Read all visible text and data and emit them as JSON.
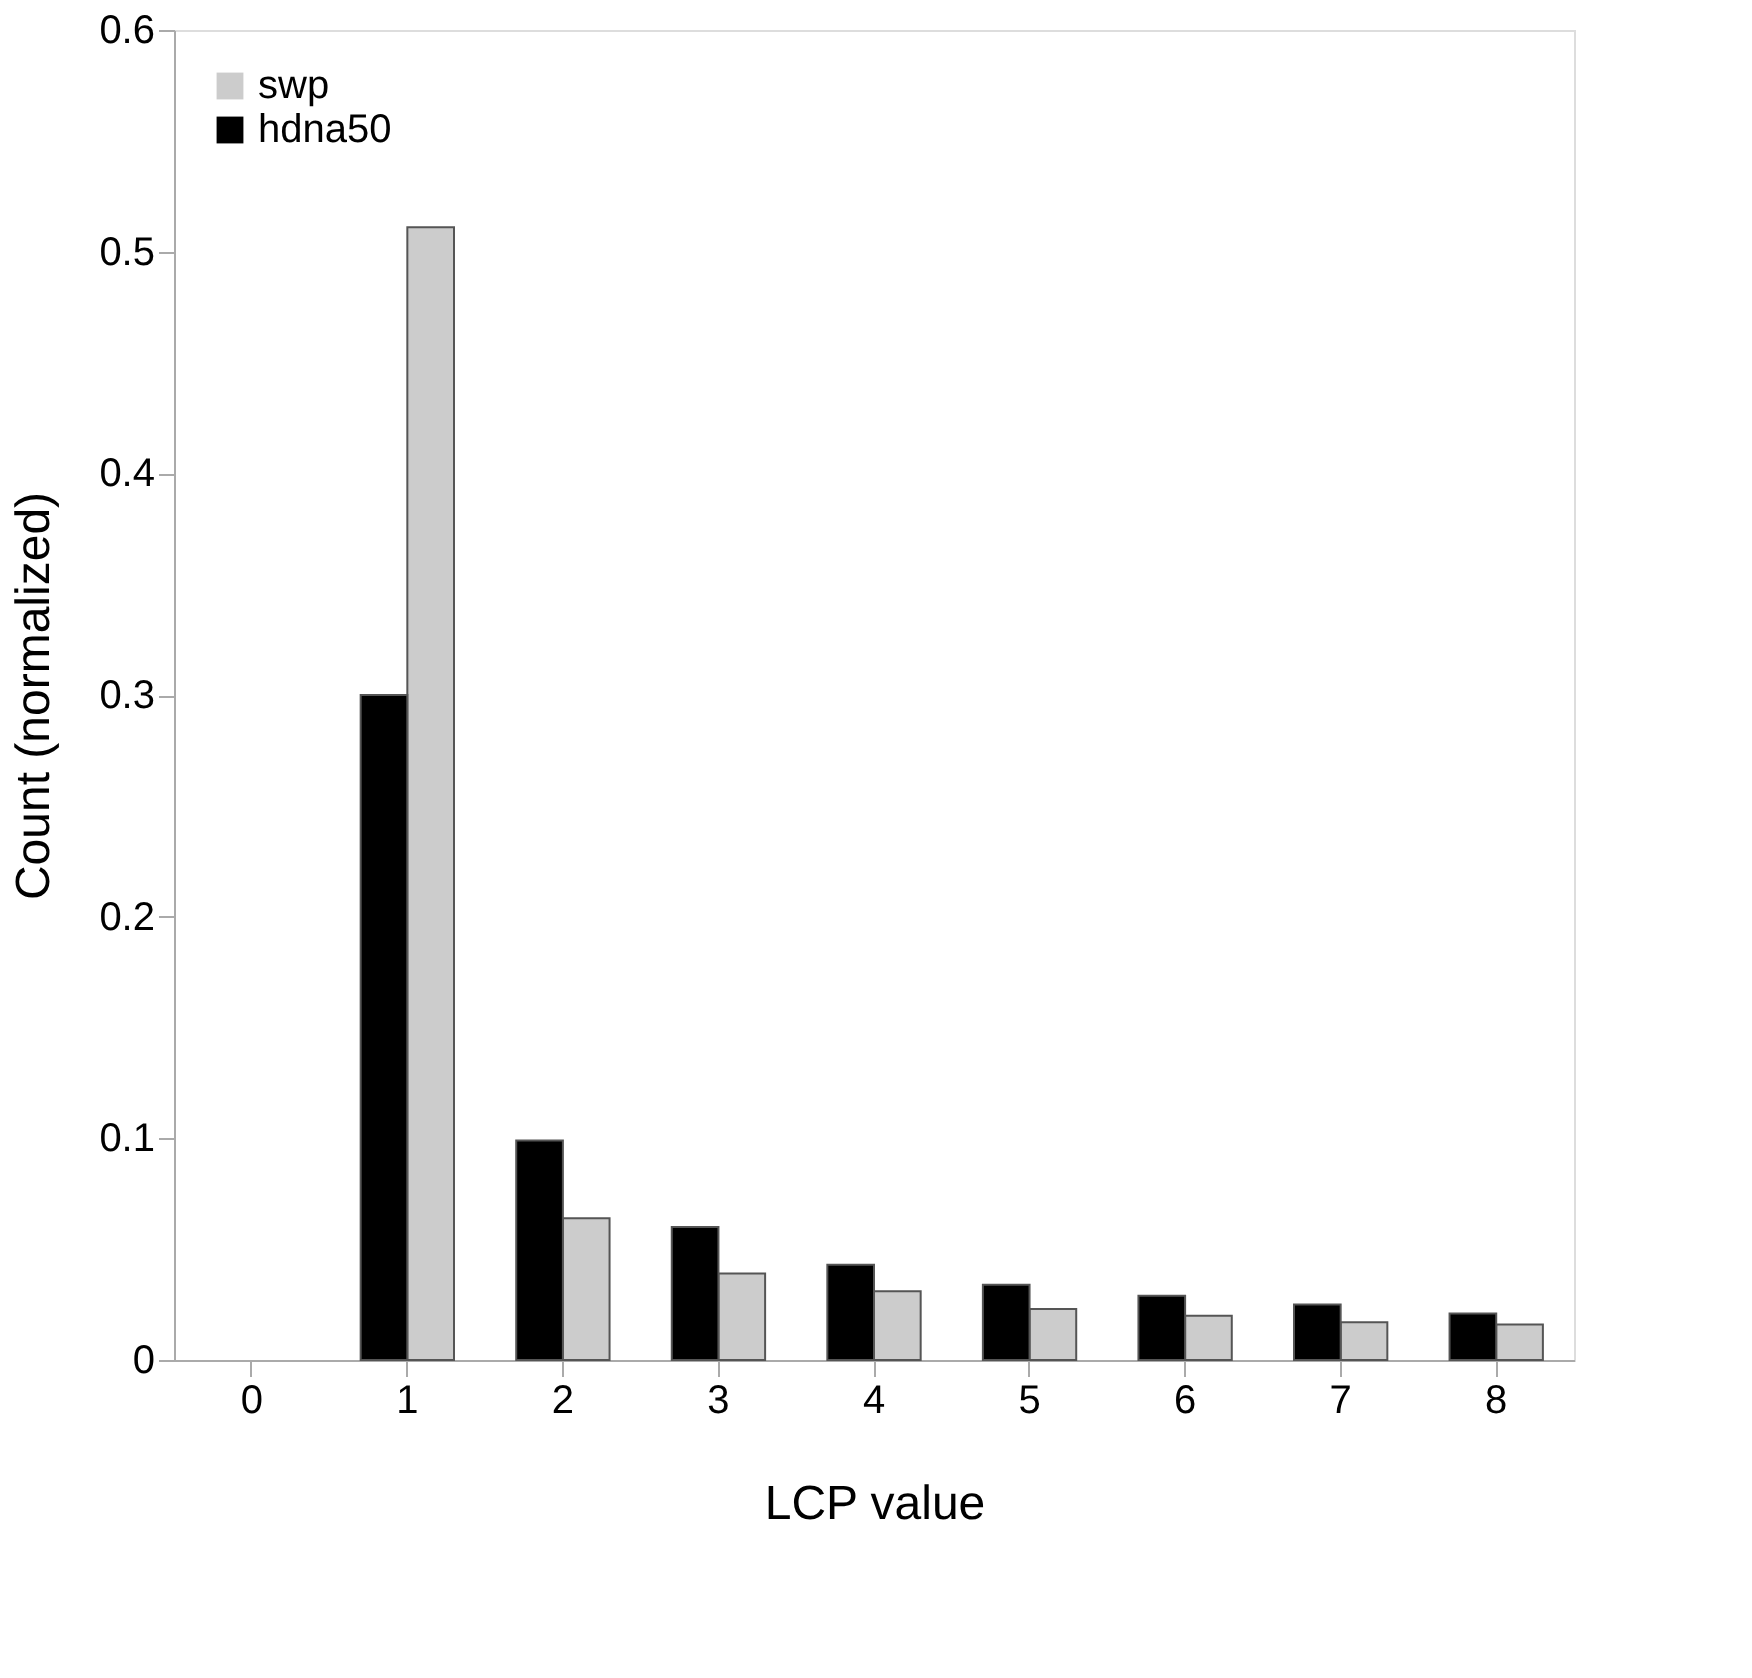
{
  "chart_data": {
    "type": "bar",
    "xlabel": "LCP value",
    "ylabel": "Count (normalized)",
    "categories": [
      "0",
      "1",
      "2",
      "3",
      "4",
      "5",
      "6",
      "7",
      "8"
    ],
    "series": [
      {
        "name": "swp",
        "color": "#cccccc",
        "values": [
          null,
          0.511,
          0.064,
          0.039,
          0.031,
          0.023,
          0.02,
          0.017,
          0.016
        ]
      },
      {
        "name": "hdna50",
        "color": "#000000",
        "values": [
          null,
          0.3,
          0.099,
          0.06,
          0.043,
          0.034,
          0.029,
          0.025,
          0.021
        ]
      }
    ],
    "ylim": [
      0,
      0.6
    ],
    "yticks": [
      0,
      0.1,
      0.2,
      0.3,
      0.4,
      0.5,
      0.6
    ],
    "grid": false,
    "legend": "top left"
  }
}
